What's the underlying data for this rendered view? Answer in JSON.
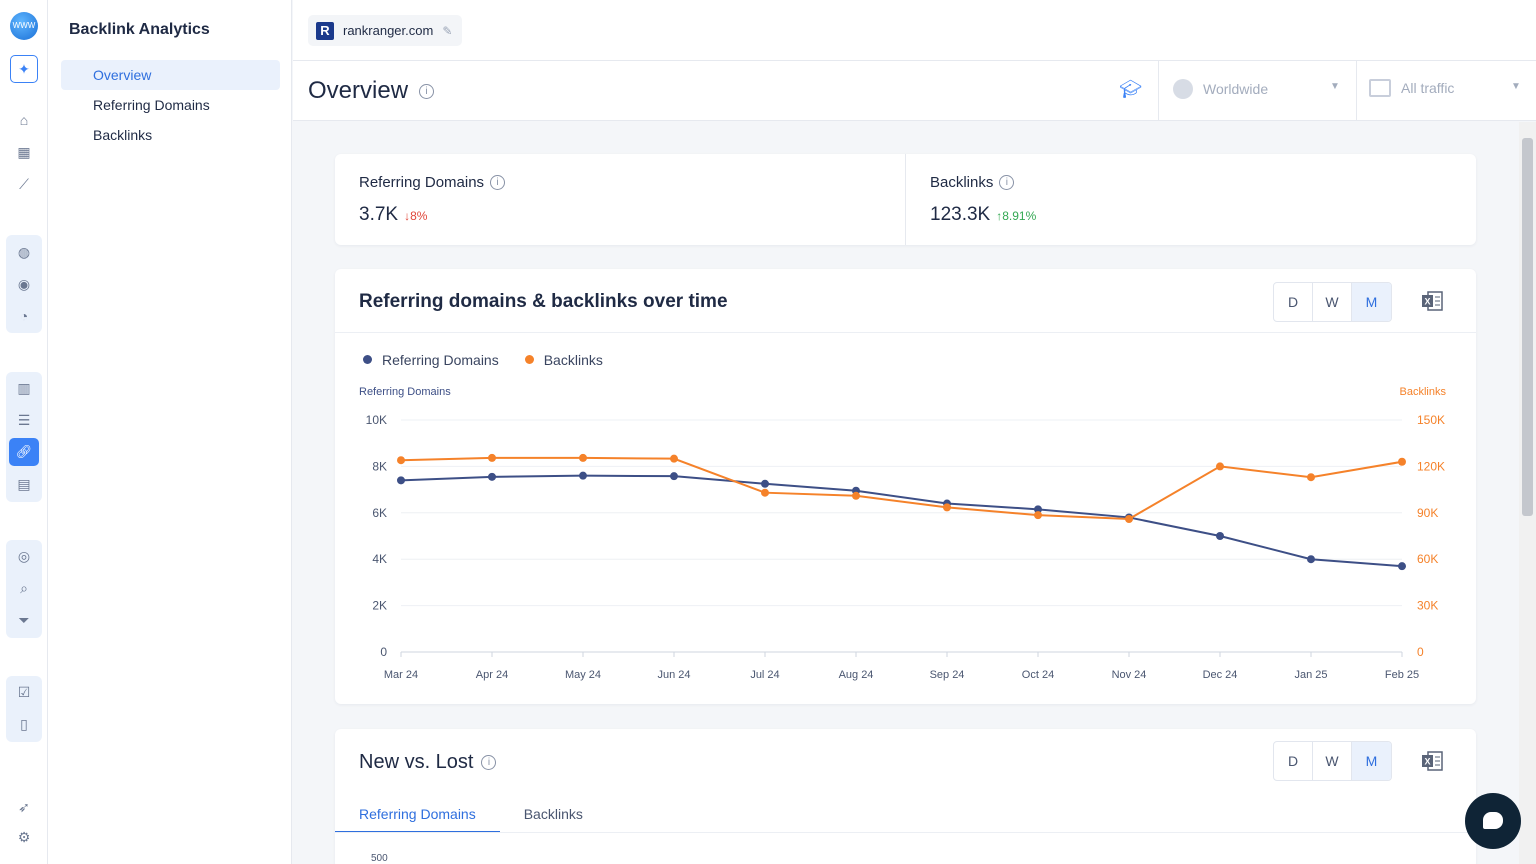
{
  "app": {
    "title": "Backlink Analytics",
    "logo_text": "WWW"
  },
  "subnav": {
    "items": [
      {
        "label": "Overview",
        "selected": true
      },
      {
        "label": "Referring Domains",
        "selected": false
      },
      {
        "label": "Backlinks",
        "selected": false
      }
    ]
  },
  "domain": {
    "name": "rankranger.com",
    "logo_letter": "R"
  },
  "header": {
    "title": "Overview",
    "region": "Worldwide",
    "traffic": "All traffic"
  },
  "metrics": {
    "referring_domains": {
      "label": "Referring Domains",
      "value": "3.7K",
      "delta": "↓8%"
    },
    "backlinks": {
      "label": "Backlinks",
      "value": "123.3K",
      "delta": "↑8.91%"
    }
  },
  "over_time": {
    "title": "Referring domains & backlinks over time",
    "granularity": [
      "D",
      "W",
      "M"
    ],
    "selected": "M"
  },
  "chart_data": {
    "type": "line",
    "categories": [
      "Mar 24",
      "Apr 24",
      "May 24",
      "Jun 24",
      "Jul 24",
      "Aug 24",
      "Sep 24",
      "Oct 24",
      "Nov 24",
      "Dec 24",
      "Jan 25",
      "Feb 25"
    ],
    "series": [
      {
        "name": "Referring Domains",
        "axis": "left",
        "color": "#3d4f86",
        "values": [
          7400,
          7550,
          7600,
          7580,
          7250,
          6950,
          6400,
          6150,
          5800,
          5000,
          4000,
          3700
        ]
      },
      {
        "name": "Backlinks",
        "axis": "right",
        "color": "#f5822a",
        "values": [
          124000,
          125500,
          125500,
          125000,
          103000,
          101000,
          93500,
          88500,
          86000,
          120000,
          113000,
          123000
        ]
      }
    ],
    "ylabel": "Referring Domains",
    "ylabel_right": "Backlinks",
    "ylim": [
      0,
      10000
    ],
    "ylim_right": [
      0,
      150000
    ],
    "yticks": [
      "0",
      "2K",
      "4K",
      "6K",
      "8K",
      "10K"
    ],
    "yticks_right": [
      "0",
      "30K",
      "60K",
      "90K",
      "120K",
      "150K"
    ],
    "legend": "top-left",
    "grid": true
  },
  "new_lost": {
    "title": "New vs. Lost",
    "granularity": [
      "D",
      "W",
      "M"
    ],
    "selected": "M",
    "tabs": [
      "Referring Domains",
      "Backlinks"
    ],
    "active_tab": "Referring Domains",
    "first_tick": "500"
  }
}
